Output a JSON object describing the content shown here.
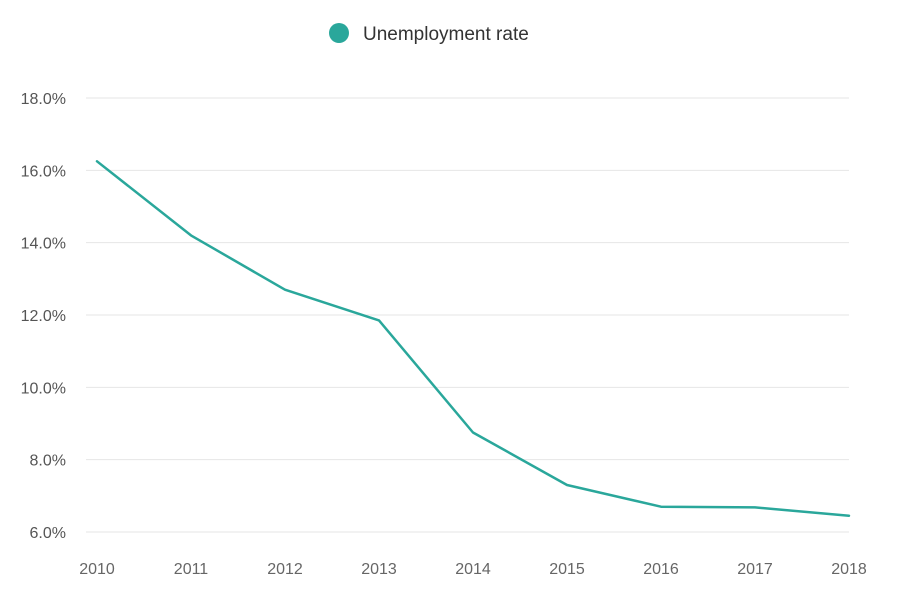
{
  "legend": {
    "label": "Unemployment rate",
    "marker_color": "#2aa79b"
  },
  "chart_data": {
    "type": "line",
    "x": [
      2010,
      2011,
      2012,
      2013,
      2014,
      2015,
      2016,
      2017,
      2018
    ],
    "categories": [
      "2010",
      "2011",
      "2012",
      "2013",
      "2014",
      "2015",
      "2016",
      "2017",
      "2018"
    ],
    "series": [
      {
        "name": "Unemployment rate",
        "color": "#2aa79b",
        "values": [
          16.25,
          14.2,
          12.7,
          11.85,
          8.75,
          7.3,
          6.7,
          6.68,
          6.45
        ]
      }
    ],
    "ylim": [
      6,
      18
    ],
    "y_ticks": [
      6,
      8,
      10,
      12,
      14,
      16,
      18
    ],
    "y_tick_labels": [
      "6.0%",
      "8.0%",
      "10.0%",
      "12.0%",
      "14.0%",
      "16.0%",
      "18.0%"
    ],
    "grid": true,
    "legend_position": "top-center"
  }
}
